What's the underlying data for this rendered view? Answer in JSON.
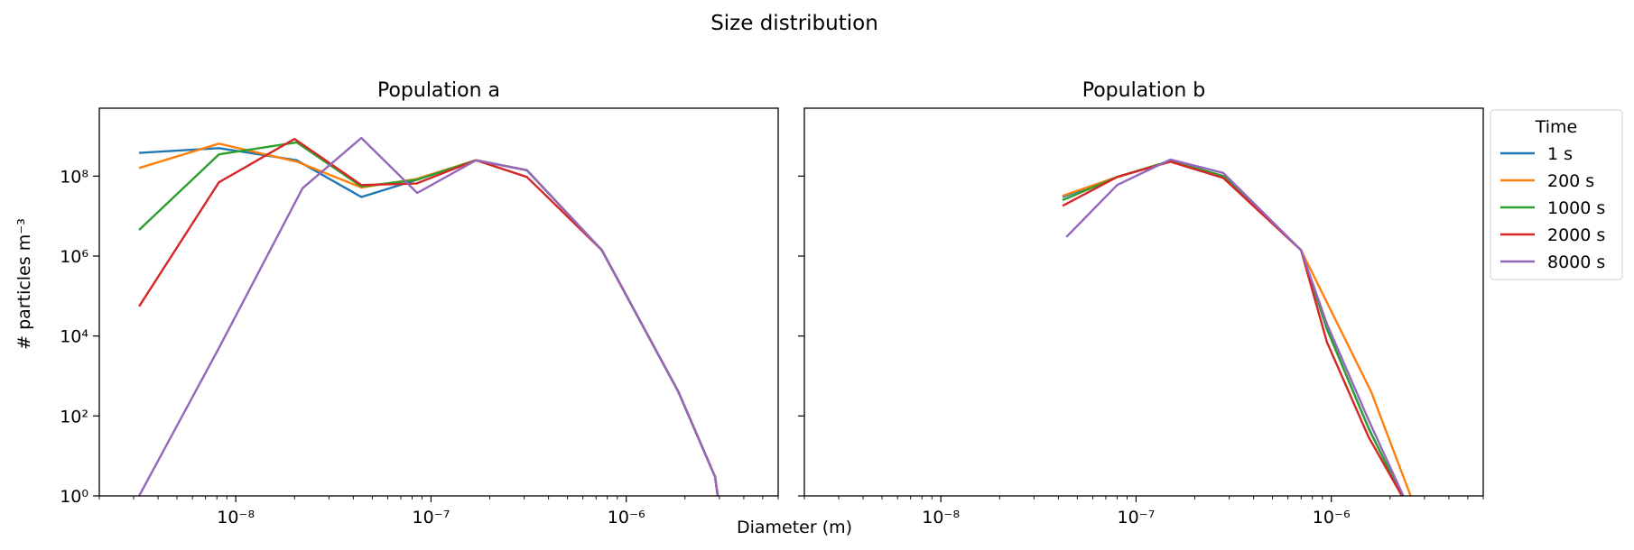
{
  "chart_data": {
    "type": "line",
    "title": "Size distribution",
    "xlabel": "Diameter (m)",
    "ylabel": "# particles m⁻³",
    "xscale": "log",
    "yscale": "log",
    "xlim": [
      2e-09,
      6e-06
    ],
    "ylim": [
      1,
      5000000000.0
    ],
    "xticks": [
      {
        "value": 1e-08,
        "label": "10⁻⁸"
      },
      {
        "value": 1e-07,
        "label": "10⁻⁷"
      },
      {
        "value": 1e-06,
        "label": "10⁻⁶"
      }
    ],
    "yticks": [
      {
        "value": 1,
        "label": "10⁰"
      },
      {
        "value": 100,
        "label": "10²"
      },
      {
        "value": 10000,
        "label": "10⁴"
      },
      {
        "value": 1000000,
        "label": "10⁶"
      },
      {
        "value": 100000000,
        "label": "10⁸"
      }
    ],
    "grid": false,
    "legend": {
      "title": "Time",
      "placement": "outside-right"
    },
    "colors": {
      "1 s": "#1f77b4",
      "200 s": "#ff7f0e",
      "1000 s": "#2ca02c",
      "2000 s": "#d62728",
      "8000 s": "#9467bd"
    },
    "panels": [
      {
        "title": "Population a",
        "series": [
          {
            "name": "1 s",
            "x": [
              3.2e-09,
              8.2e-09,
              2.05e-08,
              4.4e-08,
              8.4e-08,
              1.7e-07,
              3.1e-07,
              7.5e-07,
              1.85e-06,
              2.85e-06,
              3e-06
            ],
            "y": [
              380000000.0,
              500000000.0,
              250000000.0,
              30000000.0,
              80000000.0,
              250000000.0,
              140000000.0,
              1400000.0,
              400,
              3,
              0.5
            ]
          },
          {
            "name": "200 s",
            "x": [
              3.2e-09,
              8.2e-09,
              2.05e-08,
              4.4e-08,
              8.4e-08,
              1.7e-07,
              3.1e-07,
              7.5e-07,
              1.85e-06,
              2.85e-06,
              3e-06
            ],
            "y": [
              160000000.0,
              650000000.0,
              230000000.0,
              52000000.0,
              85000000.0,
              250000000.0,
              140000000.0,
              1400000.0,
              400,
              3,
              0.5
            ]
          },
          {
            "name": "1000 s",
            "x": [
              3.2e-09,
              8.2e-09,
              2.05e-08,
              4.4e-08,
              8.4e-08,
              1.7e-07,
              3.1e-07,
              7.5e-07,
              1.85e-06,
              2.85e-06,
              3e-06
            ],
            "y": [
              4500000.0,
              350000000.0,
              700000000.0,
              55000000.0,
              80000000.0,
              250000000.0,
              140000000.0,
              1400000.0,
              400,
              3,
              0.5
            ]
          },
          {
            "name": "2000 s",
            "x": [
              3.2e-09,
              8.2e-09,
              2e-08,
              4.4e-08,
              8.4e-08,
              1.7e-07,
              3.1e-07,
              7.5e-07,
              1.85e-06,
              2.85e-06,
              3e-06
            ],
            "y": [
              55000.0,
              70000000.0,
              850000000.0,
              60000000.0,
              65000000.0,
              250000000.0,
              95000000.0,
              1400000.0,
              400,
              3,
              0.5
            ]
          },
          {
            "name": "8000 s",
            "x": [
              3.2e-09,
              8.2e-09,
              2.2e-08,
              4.4e-08,
              8.5e-08,
              1.7e-07,
              3.1e-07,
              7.5e-07,
              1.85e-06,
              2.85e-06,
              3e-06
            ],
            "y": [
              1,
              5000,
              50000000.0,
              900000000.0,
              38000000.0,
              250000000.0,
              140000000.0,
              1400000.0,
              400,
              3,
              0.5
            ]
          }
        ]
      },
      {
        "title": "Population b",
        "series": [
          {
            "name": "1 s",
            "x": [
              4.2e-08,
              8e-08,
              1.5e-07,
              2.8e-07,
              7e-07,
              9.5e-07,
              1.55e-06,
              2.3e-06,
              2.6e-06
            ],
            "y": [
              30000000.0,
              95000000.0,
              240000000.0,
              100000000.0,
              1400000.0,
              15000.0,
              50,
              1,
              0.3
            ]
          },
          {
            "name": "200 s",
            "x": [
              4.2e-08,
              8e-08,
              1.5e-07,
              2.8e-07,
              7e-07,
              1.6e-06,
              2.55e-06,
              2.8e-06
            ],
            "y": [
              32000000.0,
              95000000.0,
              240000000.0,
              100000000.0,
              1400000.0,
              400,
              1,
              0.3
            ]
          },
          {
            "name": "1000 s",
            "x": [
              4.2e-08,
              8e-08,
              1.5e-07,
              2.8e-07,
              7e-07,
              9.5e-07,
              1.55e-06,
              2.3e-06,
              2.6e-06
            ],
            "y": [
              25000000.0,
              95000000.0,
              240000000.0,
              100000000.0,
              1400000.0,
              15000.0,
              50,
              1,
              0.3
            ]
          },
          {
            "name": "2000 s",
            "x": [
              4.2e-08,
              8e-08,
              1.5e-07,
              2.8e-07,
              7e-07,
              9.5e-07,
              1.55e-06,
              2.3e-06,
              2.6e-06
            ],
            "y": [
              18000000.0,
              95000000.0,
              230000000.0,
              90000000.0,
              1400000.0,
              7000,
              30,
              1,
              0.3
            ]
          },
          {
            "name": "8000 s",
            "x": [
              4.4e-08,
              8e-08,
              1.5e-07,
              2.8e-07,
              7e-07,
              9.5e-07,
              1.55e-06,
              2.3e-06,
              2.6e-06
            ],
            "y": [
              3000000.0,
              60000000.0,
              260000000.0,
              120000000.0,
              1400000.0,
              20000.0,
              80,
              1.2,
              0.3
            ]
          }
        ]
      }
    ]
  }
}
